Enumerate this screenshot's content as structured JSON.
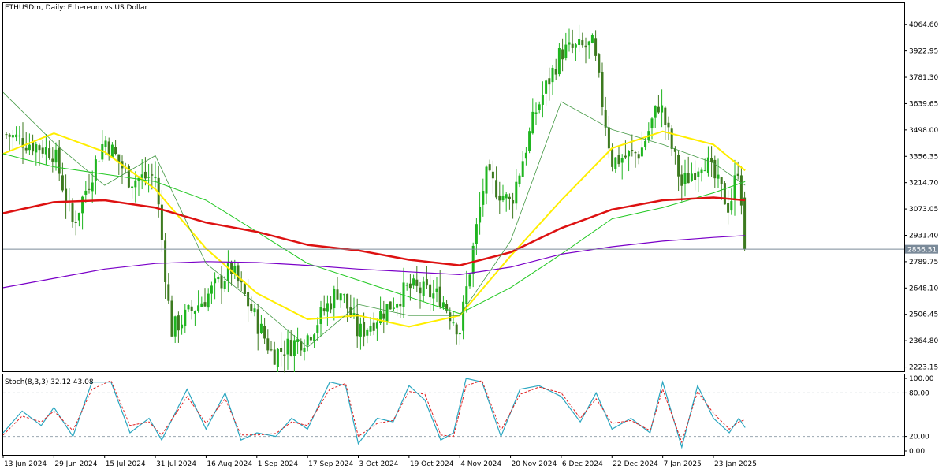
{
  "chart_title": "ETHUSDm, Daily:  Ethereum vs US Dollar",
  "current_price": "2856.51",
  "colors": {
    "up_candle": "#1fb51f",
    "down_candle": "#3c7a1f",
    "ma_yellow": "#ffee00",
    "ma_green": "#22c822",
    "ma_red": "#dd1111",
    "ma_purple": "#7a00c8",
    "ma_thin": "#449944",
    "stoch_main": "#2aa6c0",
    "stoch_signal": "#e01e1e",
    "price_line": "#7a8a99"
  },
  "chart_data": [
    {
      "type": "line",
      "title": "ETHUSDm, Daily:  Ethereum vs US Dollar",
      "ylim": [
        2200,
        4180
      ],
      "y_ticks": [
        "4064.60",
        "3922.95",
        "3781.30",
        "3639.65",
        "3498.00",
        "3356.35",
        "3214.70",
        "3073.05",
        "2931.40",
        "2789.75",
        "2648.10",
        "2506.45",
        "2364.80",
        "2223.15"
      ],
      "x_ticks": [
        "13 Jun 2024",
        "29 Jun 2024",
        "15 Jul 2024",
        "31 Jul 2024",
        "16 Aug 2024",
        "1 Sep 2024",
        "17 Sep 2024",
        "3 Oct 2024",
        "19 Oct 2024",
        "4 Nov 2024",
        "20 Nov 2024",
        "6 Dec 2024",
        "22 Dec 2024",
        "7 Jan 2025",
        "23 Jan 2025"
      ],
      "close_anchors": [
        {
          "date": "13 Jun 2024",
          "close": 3480
        },
        {
          "date": "29 Jun 2024",
          "close": 3380
        },
        {
          "date": "5 Jul 2024",
          "close": 2990
        },
        {
          "date": "15 Jul 2024",
          "close": 3450
        },
        {
          "date": "23 Jul 2024",
          "close": 3230
        },
        {
          "date": "31 Jul 2024",
          "close": 3250
        },
        {
          "date": "5 Aug 2024",
          "close": 2420
        },
        {
          "date": "16 Aug 2024",
          "close": 2600
        },
        {
          "date": "24 Aug 2024",
          "close": 2750
        },
        {
          "date": "6 Sep 2024",
          "close": 2290
        },
        {
          "date": "17 Sep 2024",
          "close": 2390
        },
        {
          "date": "27 Sep 2024",
          "close": 2650
        },
        {
          "date": "3 Oct 2024",
          "close": 2400
        },
        {
          "date": "19 Oct 2024",
          "close": 2650
        },
        {
          "date": "29 Oct 2024",
          "close": 2600
        },
        {
          "date": "4 Nov 2024",
          "close": 2420
        },
        {
          "date": "12 Nov 2024",
          "close": 3250
        },
        {
          "date": "20 Nov 2024",
          "close": 3100
        },
        {
          "date": "28 Nov 2024",
          "close": 3600
        },
        {
          "date": "6 Dec 2024",
          "close": 3920
        },
        {
          "date": "16 Dec 2024",
          "close": 3950
        },
        {
          "date": "22 Dec 2024",
          "close": 3330
        },
        {
          "date": "31 Dec 2024",
          "close": 3380
        },
        {
          "date": "6 Jan 2025",
          "close": 3650
        },
        {
          "date": "13 Jan 2025",
          "close": 3200
        },
        {
          "date": "20 Jan 2025",
          "close": 3350
        },
        {
          "date": "28 Jan 2025",
          "close": 3080
        },
        {
          "date": "31 Jan 2025",
          "close": 3320
        },
        {
          "date": "2 Feb 2025",
          "close": 2856.51
        }
      ],
      "series": [
        {
          "values": [
            {
              "date": "13 Jun 2024",
              "value": 3370
            },
            {
              "date": "29 Jun 2024",
              "value": 3480
            },
            {
              "date": "15 Jul 2024",
              "value": 3380
            },
            {
              "date": "31 Jul 2024",
              "value": 3180
            },
            {
              "date": "16 Aug 2024",
              "value": 2860
            },
            {
              "date": "1 Sep 2024",
              "value": 2620
            },
            {
              "date": "17 Sep 2024",
              "value": 2480
            },
            {
              "date": "3 Oct 2024",
              "value": 2500
            },
            {
              "date": "19 Oct 2024",
              "value": 2440
            },
            {
              "date": "4 Nov 2024",
              "value": 2500
            },
            {
              "date": "20 Nov 2024",
              "value": 2820
            },
            {
              "date": "6 Dec 2024",
              "value": 3120
            },
            {
              "date": "22 Dec 2024",
              "value": 3400
            },
            {
              "date": "7 Jan 2025",
              "value": 3490
            },
            {
              "date": "23 Jan 2025",
              "value": 3420
            },
            {
              "date": "2 Feb 2025",
              "value": 3280
            }
          ]
        },
        {
          "values": [
            {
              "date": "13 Jun 2024",
              "value": 3370
            },
            {
              "date": "29 Jun 2024",
              "value": 3300
            },
            {
              "date": "15 Jul 2024",
              "value": 3260
            },
            {
              "date": "31 Jul 2024",
              "value": 3220
            },
            {
              "date": "16 Aug 2024",
              "value": 3120
            },
            {
              "date": "1 Sep 2024",
              "value": 2950
            },
            {
              "date": "17 Sep 2024",
              "value": 2780
            },
            {
              "date": "3 Oct 2024",
              "value": 2690
            },
            {
              "date": "19 Oct 2024",
              "value": 2600
            },
            {
              "date": "4 Nov 2024",
              "value": 2510
            },
            {
              "date": "20 Nov 2024",
              "value": 2650
            },
            {
              "date": "6 Dec 2024",
              "value": 2830
            },
            {
              "date": "22 Dec 2024",
              "value": 3020
            },
            {
              "date": "7 Jan 2025",
              "value": 3080
            },
            {
              "date": "23 Jan 2025",
              "value": 3160
            },
            {
              "date": "2 Feb 2025",
              "value": 3220
            }
          ]
        },
        {
          "values": [
            {
              "date": "13 Jun 2024",
              "value": 3050
            },
            {
              "date": "29 Jun 2024",
              "value": 3110
            },
            {
              "date": "15 Jul 2024",
              "value": 3120
            },
            {
              "date": "31 Jul 2024",
              "value": 3080
            },
            {
              "date": "16 Aug 2024",
              "value": 3000
            },
            {
              "date": "1 Sep 2024",
              "value": 2950
            },
            {
              "date": "17 Sep 2024",
              "value": 2880
            },
            {
              "date": "3 Oct 2024",
              "value": 2850
            },
            {
              "date": "19 Oct 2024",
              "value": 2800
            },
            {
              "date": "4 Nov 2024",
              "value": 2770
            },
            {
              "date": "20 Nov 2024",
              "value": 2840
            },
            {
              "date": "6 Dec 2024",
              "value": 2970
            },
            {
              "date": "22 Dec 2024",
              "value": 3070
            },
            {
              "date": "7 Jan 2025",
              "value": 3120
            },
            {
              "date": "23 Jan 2025",
              "value": 3135
            },
            {
              "date": "2 Feb 2025",
              "value": 3120
            }
          ]
        },
        {
          "values": [
            {
              "date": "13 Jun 2024",
              "value": 2650
            },
            {
              "date": "29 Jun 2024",
              "value": 2700
            },
            {
              "date": "15 Jul 2024",
              "value": 2750
            },
            {
              "date": "31 Jul 2024",
              "value": 2780
            },
            {
              "date": "16 Aug 2024",
              "value": 2790
            },
            {
              "date": "1 Sep 2024",
              "value": 2785
            },
            {
              "date": "17 Sep 2024",
              "value": 2770
            },
            {
              "date": "3 Oct 2024",
              "value": 2750
            },
            {
              "date": "19 Oct 2024",
              "value": 2735
            },
            {
              "date": "4 Nov 2024",
              "value": 2720
            },
            {
              "date": "20 Nov 2024",
              "value": 2760
            },
            {
              "date": "6 Dec 2024",
              "value": 2830
            },
            {
              "date": "22 Dec 2024",
              "value": 2870
            },
            {
              "date": "7 Jan 2025",
              "value": 2900
            },
            {
              "date": "23 Jan 2025",
              "value": 2920
            },
            {
              "date": "2 Feb 2025",
              "value": 2930
            }
          ]
        },
        {
          "values": [
            {
              "date": "13 Jun 2024",
              "value": 3700
            },
            {
              "date": "29 Jun 2024",
              "value": 3430
            },
            {
              "date": "15 Jul 2024",
              "value": 3200
            },
            {
              "date": "31 Jul 2024",
              "value": 3360
            },
            {
              "date": "16 Aug 2024",
              "value": 2780
            },
            {
              "date": "1 Sep 2024",
              "value": 2560
            },
            {
              "date": "17 Sep 2024",
              "value": 2330
            },
            {
              "date": "3 Oct 2024",
              "value": 2560
            },
            {
              "date": "19 Oct 2024",
              "value": 2500
            },
            {
              "date": "4 Nov 2024",
              "value": 2500
            },
            {
              "date": "20 Nov 2024",
              "value": 2900
            },
            {
              "date": "6 Dec 2024",
              "value": 3650
            },
            {
              "date": "22 Dec 2024",
              "value": 3500
            },
            {
              "date": "7 Jan 2025",
              "value": 3420
            },
            {
              "date": "23 Jan 2025",
              "value": 3320
            },
            {
              "date": "2 Feb 2025",
              "value": 3200
            }
          ]
        }
      ]
    },
    {
      "type": "line",
      "title": "Stoch(8,3,3) 32.12 43.08",
      "ylim": [
        0,
        100
      ],
      "y_ticks": [
        "100.00",
        "80.00",
        "20.00",
        "0.00"
      ],
      "series": [
        {
          "values": [
            {
              "date": "13 Jun 2024",
              "value": 25
            },
            {
              "date": "19 Jun 2024",
              "value": 55
            },
            {
              "date": "25 Jun 2024",
              "value": 35
            },
            {
              "date": "29 Jun 2024",
              "value": 60
            },
            {
              "date": "5 Jul 2024",
              "value": 20
            },
            {
              "date": "11 Jul 2024",
              "value": 95
            },
            {
              "date": "17 Jul 2024",
              "value": 95
            },
            {
              "date": "23 Jul 2024",
              "value": 25
            },
            {
              "date": "29 Jul 2024",
              "value": 45
            },
            {
              "date": "2 Aug 2024",
              "value": 15
            },
            {
              "date": "10 Aug 2024",
              "value": 85
            },
            {
              "date": "16 Aug 2024",
              "value": 30
            },
            {
              "date": "22 Aug 2024",
              "value": 80
            },
            {
              "date": "27 Aug 2024",
              "value": 15
            },
            {
              "date": "1 Sep 2024",
              "value": 25
            },
            {
              "date": "7 Sep 2024",
              "value": 20
            },
            {
              "date": "12 Sep 2024",
              "value": 45
            },
            {
              "date": "17 Sep 2024",
              "value": 30
            },
            {
              "date": "24 Sep 2024",
              "value": 95
            },
            {
              "date": "29 Sep 2024",
              "value": 90
            },
            {
              "date": "3 Oct 2024",
              "value": 10
            },
            {
              "date": "9 Oct 2024",
              "value": 45
            },
            {
              "date": "14 Oct 2024",
              "value": 40
            },
            {
              "date": "19 Oct 2024",
              "value": 90
            },
            {
              "date": "24 Oct 2024",
              "value": 70
            },
            {
              "date": "29 Oct 2024",
              "value": 15
            },
            {
              "date": "2 Nov 2024",
              "value": 25
            },
            {
              "date": "6 Nov 2024",
              "value": 100
            },
            {
              "date": "11 Nov 2024",
              "value": 95
            },
            {
              "date": "17 Nov 2024",
              "value": 20
            },
            {
              "date": "23 Nov 2024",
              "value": 85
            },
            {
              "date": "29 Nov 2024",
              "value": 90
            },
            {
              "date": "6 Dec 2024",
              "value": 75
            },
            {
              "date": "12 Dec 2024",
              "value": 40
            },
            {
              "date": "17 Dec 2024",
              "value": 80
            },
            {
              "date": "22 Dec 2024",
              "value": 30
            },
            {
              "date": "28 Dec 2024",
              "value": 45
            },
            {
              "date": "3 Jan 2025",
              "value": 25
            },
            {
              "date": "7 Jan 2025",
              "value": 95
            },
            {
              "date": "13 Jan 2025",
              "value": 5
            },
            {
              "date": "18 Jan 2025",
              "value": 90
            },
            {
              "date": "23 Jan 2025",
              "value": 45
            },
            {
              "date": "28 Jan 2025",
              "value": 25
            },
            {
              "date": "31 Jan 2025",
              "value": 45
            },
            {
              "date": "2 Feb 2025",
              "value": 32.12
            }
          ]
        },
        {
          "values": [
            {
              "date": "13 Jun 2024",
              "value": 22
            },
            {
              "date": "19 Jun 2024",
              "value": 48
            },
            {
              "date": "25 Jun 2024",
              "value": 40
            },
            {
              "date": "29 Jun 2024",
              "value": 55
            },
            {
              "date": "5 Jul 2024",
              "value": 28
            },
            {
              "date": "11 Jul 2024",
              "value": 85
            },
            {
              "date": "17 Jul 2024",
              "value": 97
            },
            {
              "date": "23 Jul 2024",
              "value": 35
            },
            {
              "date": "29 Jul 2024",
              "value": 40
            },
            {
              "date": "2 Aug 2024",
              "value": 22
            },
            {
              "date": "10 Aug 2024",
              "value": 75
            },
            {
              "date": "16 Aug 2024",
              "value": 38
            },
            {
              "date": "22 Aug 2024",
              "value": 72
            },
            {
              "date": "27 Aug 2024",
              "value": 22
            },
            {
              "date": "1 Sep 2024",
              "value": 22
            },
            {
              "date": "7 Sep 2024",
              "value": 24
            },
            {
              "date": "12 Sep 2024",
              "value": 40
            },
            {
              "date": "17 Sep 2024",
              "value": 35
            },
            {
              "date": "24 Sep 2024",
              "value": 85
            },
            {
              "date": "29 Sep 2024",
              "value": 93
            },
            {
              "date": "3 Oct 2024",
              "value": 20
            },
            {
              "date": "9 Oct 2024",
              "value": 38
            },
            {
              "date": "14 Oct 2024",
              "value": 42
            },
            {
              "date": "19 Oct 2024",
              "value": 82
            },
            {
              "date": "24 Oct 2024",
              "value": 78
            },
            {
              "date": "29 Oct 2024",
              "value": 22
            },
            {
              "date": "2 Nov 2024",
              "value": 20
            },
            {
              "date": "6 Nov 2024",
              "value": 90
            },
            {
              "date": "11 Nov 2024",
              "value": 97
            },
            {
              "date": "17 Nov 2024",
              "value": 28
            },
            {
              "date": "23 Nov 2024",
              "value": 78
            },
            {
              "date": "29 Nov 2024",
              "value": 88
            },
            {
              "date": "6 Dec 2024",
              "value": 80
            },
            {
              "date": "12 Dec 2024",
              "value": 45
            },
            {
              "date": "17 Dec 2024",
              "value": 72
            },
            {
              "date": "22 Dec 2024",
              "value": 38
            },
            {
              "date": "28 Dec 2024",
              "value": 42
            },
            {
              "date": "3 Jan 2025",
              "value": 28
            },
            {
              "date": "7 Jan 2025",
              "value": 85
            },
            {
              "date": "13 Jan 2025",
              "value": 12
            },
            {
              "date": "18 Jan 2025",
              "value": 82
            },
            {
              "date": "23 Jan 2025",
              "value": 52
            },
            {
              "date": "28 Jan 2025",
              "value": 30
            },
            {
              "date": "31 Jan 2025",
              "value": 40
            },
            {
              "date": "2 Feb 2025",
              "value": 43.08
            }
          ]
        }
      ]
    }
  ]
}
